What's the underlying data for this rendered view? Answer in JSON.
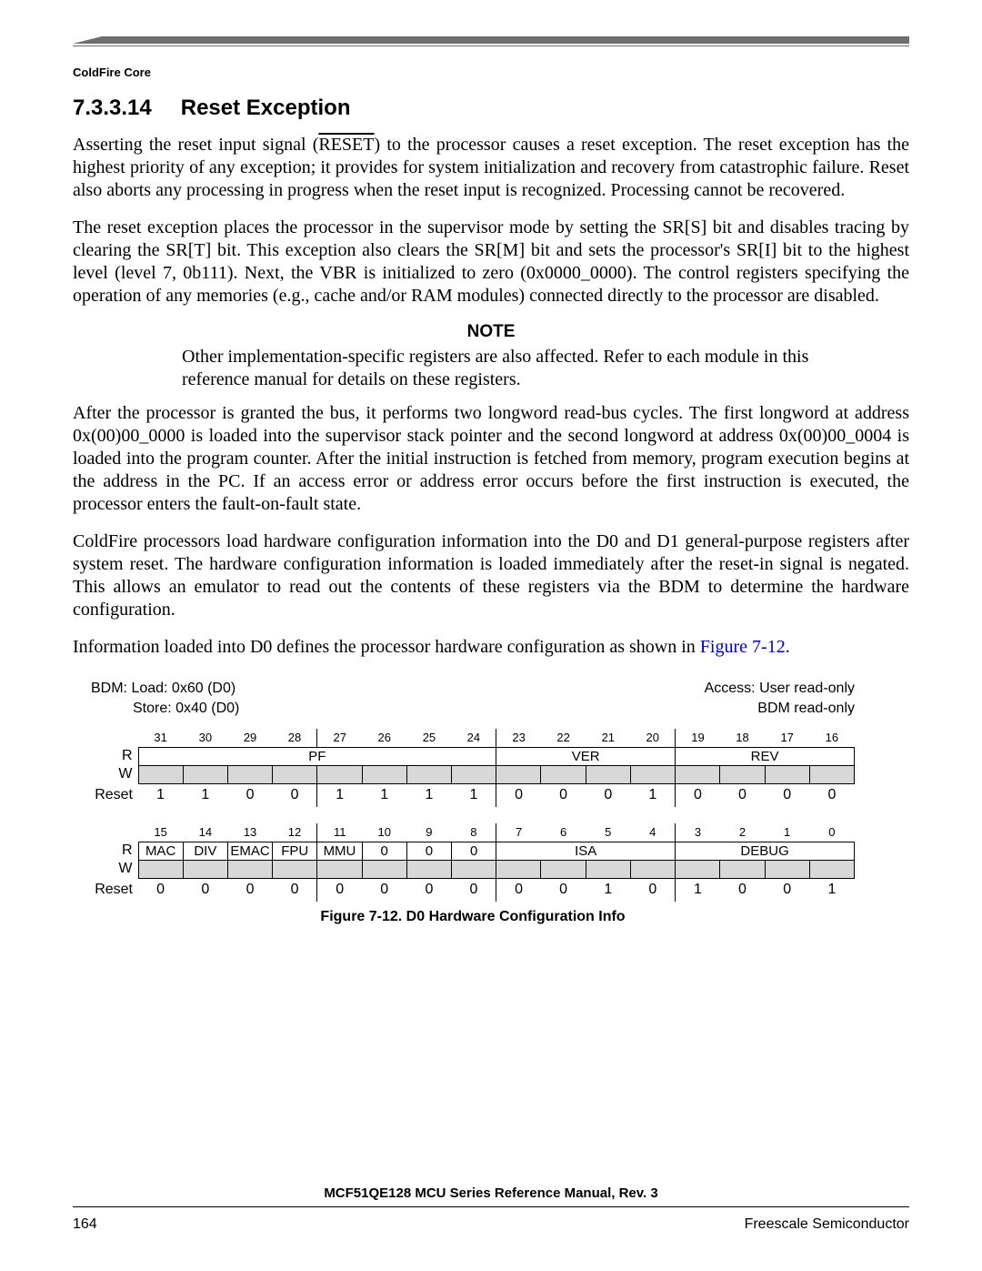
{
  "header": {
    "chapter_label": "ColdFire Core"
  },
  "section": {
    "number": "7.3.3.14",
    "title": "Reset Exception"
  },
  "paragraphs": {
    "p1a": "Asserting the reset input signal (",
    "p1_sig": "RESET",
    "p1b": ") to the processor causes a reset exception. The reset exception has the highest priority of any exception; it provides for system initialization and recovery from catastrophic failure. Reset also aborts any processing in progress when the reset input is recognized. Processing cannot be recovered.",
    "p2": "The reset exception places the processor in the supervisor mode by setting the SR[S] bit and disables tracing by clearing the SR[T] bit. This exception also clears the SR[M] bit and sets the processor's SR[I] bit to the highest level (level 7, 0b111). Next, the VBR is initialized to zero (0x0000_0000). The control registers specifying the operation of any memories (e.g., cache and/or RAM modules) connected directly to the processor are disabled.",
    "note_title": "NOTE",
    "note_body": "Other implementation-specific registers are also affected. Refer to each module in this reference manual for details on these registers.",
    "p3": "After the processor is granted the bus, it performs two longword read-bus cycles. The first longword at address 0x(00)00_0000 is loaded into the supervisor stack pointer and the second longword at address 0x(00)00_0004 is loaded into the program counter. After the initial instruction is fetched from memory, program execution begins at the address in the PC. If an access error or address error occurs before the first instruction is executed, the processor enters the fault-on-fault state.",
    "p4": "ColdFire processors load hardware configuration information into the D0 and D1 general-purpose registers after system reset. The hardware configuration information is loaded immediately after the reset-in signal is negated. This allows an emulator to read out the contents of these registers via the BDM to determine the hardware configuration.",
    "p5a": "Information loaded into D0 defines the processor hardware configuration as shown in ",
    "p5_link": "Figure 7-12",
    "p5b": "."
  },
  "register": {
    "meta": {
      "bdm_load": "BDM:  Load: 0x60 (D0)",
      "bdm_store": "Store: 0x40 (D0)",
      "access1": "Access: User read-only",
      "access2": "BDM read-only"
    },
    "labels": {
      "R": "R",
      "W": "W",
      "Reset": "Reset"
    },
    "high": {
      "bits": [
        "31",
        "30",
        "29",
        "28",
        "27",
        "26",
        "25",
        "24",
        "23",
        "22",
        "21",
        "20",
        "19",
        "18",
        "17",
        "16"
      ],
      "fields": [
        {
          "name": "PF",
          "span": 8
        },
        {
          "name": "VER",
          "span": 4
        },
        {
          "name": "REV",
          "span": 4
        }
      ],
      "reset": [
        "1",
        "1",
        "0",
        "0",
        "1",
        "1",
        "1",
        "1",
        "0",
        "0",
        "0",
        "1",
        "0",
        "0",
        "0",
        "0"
      ]
    },
    "low": {
      "bits": [
        "15",
        "14",
        "13",
        "12",
        "11",
        "10",
        "9",
        "8",
        "7",
        "6",
        "5",
        "4",
        "3",
        "2",
        "1",
        "0"
      ],
      "fields": [
        {
          "name": "MAC",
          "span": 1
        },
        {
          "name": "DIV",
          "span": 1
        },
        {
          "name": "EMAC",
          "span": 1
        },
        {
          "name": "FPU",
          "span": 1
        },
        {
          "name": "MMU",
          "span": 1
        },
        {
          "name": "0",
          "span": 1
        },
        {
          "name": "0",
          "span": 1
        },
        {
          "name": "0",
          "span": 1
        },
        {
          "name": "ISA",
          "span": 4
        },
        {
          "name": "DEBUG",
          "span": 4
        }
      ],
      "reset": [
        "0",
        "0",
        "0",
        "0",
        "0",
        "0",
        "0",
        "0",
        "0",
        "0",
        "1",
        "0",
        "1",
        "0",
        "0",
        "1"
      ]
    },
    "caption": "Figure 7-12. D0 Hardware Configuration Info"
  },
  "footer": {
    "doc_title": "MCF51QE128 MCU Series Reference Manual, Rev. 3",
    "page_num": "164",
    "vendor": "Freescale Semiconductor"
  }
}
